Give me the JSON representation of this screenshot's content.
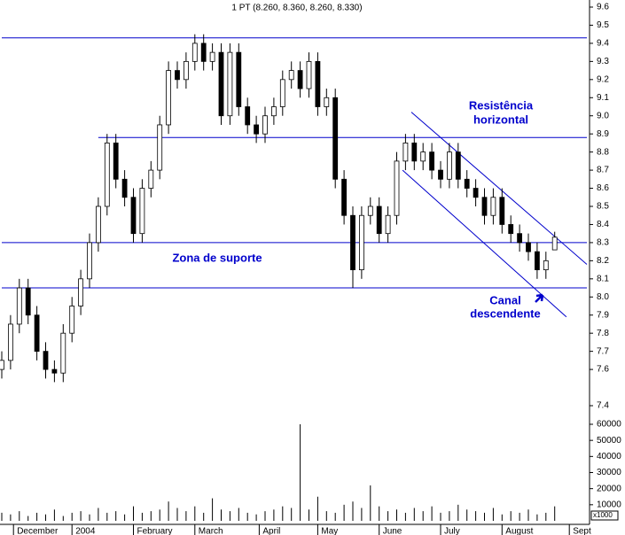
{
  "chart_data": {
    "type": "candlestick",
    "title": "1 PT (8.260, 8.360, 8.260, 8.330)",
    "x": [
      0,
      3,
      6,
      9,
      12,
      15,
      18,
      21,
      24,
      27,
      30,
      33,
      36,
      39,
      42,
      45,
      48,
      51,
      54,
      57,
      60,
      63,
      66,
      69,
      72,
      75,
      78,
      81,
      84,
      87,
      90,
      93,
      96,
      99,
      102,
      105,
      108,
      111,
      114,
      117,
      120,
      123,
      126,
      129,
      132,
      135,
      138,
      141,
      144,
      147,
      150,
      153,
      156,
      159,
      162,
      165,
      168,
      171,
      174,
      177,
      180,
      183,
      186,
      189
    ],
    "open": [
      7.6,
      7.65,
      7.85,
      8.05,
      7.9,
      7.7,
      7.6,
      7.58,
      7.8,
      7.95,
      8.1,
      8.3,
      8.5,
      8.85,
      8.65,
      8.55,
      8.35,
      8.6,
      8.7,
      8.95,
      9.25,
      9.2,
      9.3,
      9.4,
      9.3,
      9.35,
      9.0,
      9.35,
      9.05,
      8.95,
      8.9,
      9.0,
      9.05,
      9.2,
      9.25,
      9.15,
      9.3,
      9.05,
      9.1,
      8.65,
      8.45,
      8.15,
      8.45,
      8.5,
      8.35,
      8.45,
      8.75,
      8.85,
      8.75,
      8.8,
      8.7,
      8.65,
      8.8,
      8.65,
      8.6,
      8.55,
      8.45,
      8.55,
      8.4,
      8.35,
      8.3,
      8.25,
      8.15,
      8.26
    ],
    "high": [
      7.7,
      7.9,
      8.1,
      8.1,
      7.95,
      7.75,
      7.65,
      7.85,
      8.0,
      8.15,
      8.35,
      8.55,
      8.9,
      8.9,
      8.7,
      8.6,
      8.65,
      8.75,
      9.0,
      9.3,
      9.3,
      9.35,
      9.45,
      9.45,
      9.4,
      9.4,
      9.4,
      9.4,
      9.1,
      9.0,
      9.05,
      9.1,
      9.25,
      9.3,
      9.3,
      9.35,
      9.35,
      9.15,
      9.15,
      8.7,
      8.5,
      8.5,
      8.55,
      8.55,
      8.5,
      8.8,
      8.9,
      8.9,
      8.85,
      8.85,
      8.75,
      8.85,
      8.85,
      8.7,
      8.65,
      8.6,
      8.6,
      8.6,
      8.45,
      8.4,
      8.35,
      8.3,
      8.25,
      8.36
    ],
    "low": [
      7.55,
      7.6,
      7.8,
      7.85,
      7.65,
      7.55,
      7.53,
      7.53,
      7.75,
      7.9,
      8.05,
      8.25,
      8.45,
      8.6,
      8.5,
      8.3,
      8.3,
      8.55,
      8.65,
      8.9,
      9.15,
      9.15,
      9.25,
      9.25,
      9.25,
      8.95,
      8.95,
      9.0,
      8.9,
      8.85,
      8.85,
      8.95,
      9.0,
      9.15,
      9.1,
      9.1,
      9.0,
      9.0,
      8.6,
      8.4,
      8.05,
      8.1,
      8.4,
      8.3,
      8.3,
      8.4,
      8.7,
      8.7,
      8.7,
      8.65,
      8.6,
      8.6,
      8.6,
      8.55,
      8.5,
      8.4,
      8.4,
      8.35,
      8.3,
      8.25,
      8.2,
      8.1,
      8.1,
      8.26
    ],
    "close": [
      7.65,
      7.85,
      8.05,
      7.9,
      7.7,
      7.6,
      7.58,
      7.8,
      7.95,
      8.1,
      8.3,
      8.5,
      8.85,
      8.65,
      8.55,
      8.35,
      8.6,
      8.7,
      8.95,
      9.25,
      9.2,
      9.3,
      9.4,
      9.3,
      9.35,
      9.0,
      9.35,
      9.05,
      8.95,
      8.9,
      9.0,
      9.05,
      9.2,
      9.25,
      9.15,
      9.3,
      9.05,
      9.1,
      8.65,
      8.45,
      8.15,
      8.45,
      8.5,
      8.35,
      8.45,
      8.75,
      8.85,
      8.75,
      8.8,
      8.7,
      8.65,
      8.8,
      8.65,
      8.6,
      8.55,
      8.45,
      8.55,
      8.4,
      8.35,
      8.3,
      8.25,
      8.15,
      8.2,
      8.33
    ],
    "volume": [
      5000,
      4000,
      6000,
      3000,
      5000,
      4000,
      7000,
      3000,
      5000,
      6000,
      4000,
      8000,
      5000,
      6000,
      4000,
      9000,
      5000,
      6000,
      7000,
      12000,
      8000,
      6000,
      9000,
      5000,
      14000,
      7000,
      6000,
      8000,
      5000,
      4000,
      6000,
      7000,
      9000,
      8000,
      60000,
      7000,
      15000,
      6000,
      5000,
      10000,
      12000,
      8000,
      22000,
      9000,
      6000,
      7000,
      5000,
      8000,
      6000,
      9000,
      5000,
      6000,
      10000,
      7000,
      6000,
      5000,
      8000,
      4000,
      6000,
      5000,
      7000,
      4000,
      5000,
      9000
    ],
    "xlim": [
      0,
      200
    ],
    "xticks": [
      {
        "value": 4,
        "label": "December"
      },
      {
        "value": 24,
        "label": "2004"
      },
      {
        "value": 45,
        "label": "February"
      },
      {
        "value": 66,
        "label": "March"
      },
      {
        "value": 88,
        "label": "April"
      },
      {
        "value": 108,
        "label": "May"
      },
      {
        "value": 129,
        "label": "June"
      },
      {
        "value": 150,
        "label": "July"
      },
      {
        "value": 171,
        "label": "August"
      },
      {
        "value": 194,
        "label": "Sept"
      }
    ],
    "ylim": [
      7.4,
      9.6
    ],
    "yticks": [
      9.6,
      9.5,
      9.4,
      9.3,
      9.2,
      9.1,
      {
        "value": 9,
        "label": "9.0"
      },
      8.9,
      8.8,
      8.7,
      8.6,
      8.5,
      8.4,
      8.3,
      8.2,
      8.1,
      {
        "value": 8,
        "label": "8.0"
      },
      7.9,
      7.8,
      7.7,
      7.6,
      7.4
    ],
    "volume_lim": [
      0,
      60000
    ],
    "volume_ticks": [
      10000,
      20000,
      30000,
      40000,
      50000,
      60000
    ],
    "volume_unit_label": "x1000",
    "line_color": "#0000cc",
    "reference_lines": [
      {
        "x": [
          0,
          200
        ],
        "y": [
          9.43,
          9.43
        ]
      },
      {
        "x": [
          33,
          200
        ],
        "y": [
          8.88,
          8.88
        ]
      },
      {
        "x": [
          0,
          200
        ],
        "y": [
          8.3,
          8.3
        ]
      },
      {
        "x": [
          0,
          200
        ],
        "y": [
          8.05,
          8.05
        ]
      },
      {
        "x": [
          140,
          200
        ],
        "y": [
          9.02,
          8.18
        ]
      },
      {
        "x": [
          137,
          193
        ],
        "y": [
          8.7,
          7.89
        ]
      }
    ],
    "annotations": [
      "Resistência",
      "horizontal",
      "Zona de suporte",
      "Canal",
      "descendente"
    ]
  }
}
